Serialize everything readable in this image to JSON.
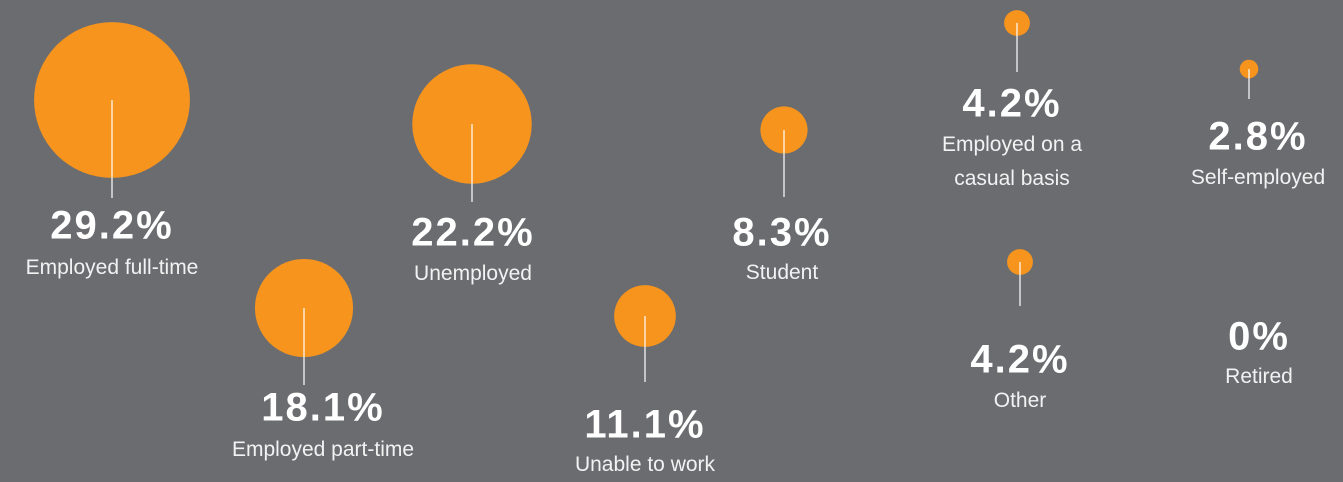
{
  "chart_data": {
    "type": "bubble",
    "categories": [
      "Employed full-time",
      "Unemployed",
      "Employed part-time",
      "Unable to work",
      "Student",
      "Employed on a casual basis",
      "Self-employed",
      "Other",
      "Retired"
    ],
    "values": [
      29.2,
      22.2,
      18.1,
      11.1,
      8.3,
      4.2,
      2.8,
      4.2,
      0
    ],
    "value_labels": [
      "29.2%",
      "22.2%",
      "18.1%",
      "11.1%",
      "8.3%",
      "4.2%",
      "2.8%",
      "4.2%",
      "0%"
    ],
    "color": "#f7941d"
  }
}
